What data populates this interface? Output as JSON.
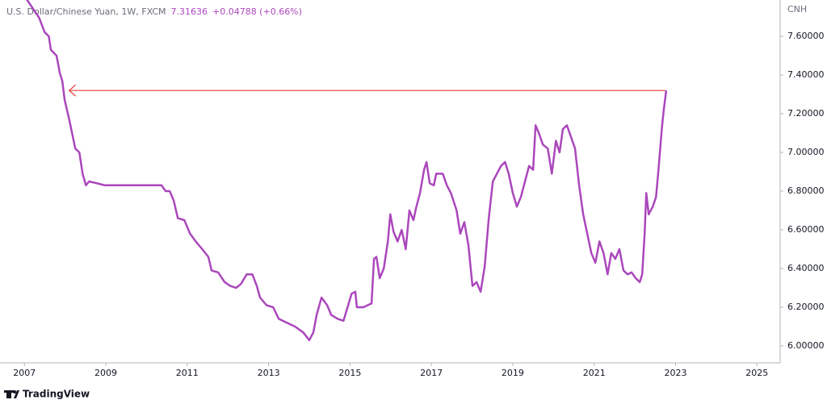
{
  "chart_data": {
    "type": "line",
    "title": "U.S. Dollar/Chinese Yuan, 1W, FXCM",
    "last_value": "7.31636",
    "change": "+0.04788 (+0.66%)",
    "y_axis_label": "CNH",
    "brand": "TradingView",
    "xlim": [
      2006.4,
      2025.57
    ],
    "xticks": [
      2007,
      2009,
      2011,
      2013,
      2015,
      2017,
      2019,
      2021,
      2023,
      2025
    ],
    "ylim": [
      5.9125,
      7.7875
    ],
    "yticks": [
      {
        "value": 6.0,
        "label": "6.00000"
      },
      {
        "value": 6.2,
        "label": "6.20000"
      },
      {
        "value": 6.4,
        "label": "6.40000"
      },
      {
        "value": 6.6,
        "label": "6.60000"
      },
      {
        "value": 6.8,
        "label": "6.80000"
      },
      {
        "value": 7.0,
        "label": "7.00000"
      },
      {
        "value": 7.2,
        "label": "7.20000"
      },
      {
        "value": 7.4,
        "label": "7.40000"
      },
      {
        "value": 7.6,
        "label": "7.60000"
      }
    ],
    "annotation_line": {
      "y": 7.32,
      "x": [
        2008.1,
        2022.75
      ],
      "color": "#e53935"
    },
    "series": [
      {
        "name": "U.S. Dollar/Chinese Yuan",
        "color": "#ab47bc",
        "x": [
          2007.06,
          2007.2,
          2007.36,
          2007.5,
          2007.6,
          2007.65,
          2007.79,
          2007.87,
          2007.93,
          2007.99,
          2008.09,
          2008.19,
          2008.25,
          2008.35,
          2008.43,
          2008.51,
          2008.59,
          2008.79,
          2008.98,
          2009.28,
          2009.58,
          2009.98,
          2010.37,
          2010.47,
          2010.57,
          2010.67,
          2010.77,
          2010.93,
          2011.07,
          2011.21,
          2011.37,
          2011.52,
          2011.6,
          2011.76,
          2011.92,
          2012.06,
          2012.2,
          2012.32,
          2012.46,
          2012.6,
          2012.71,
          2012.79,
          2012.95,
          2013.11,
          2013.25,
          2013.45,
          2013.65,
          2013.85,
          2014.0,
          2014.1,
          2014.18,
          2014.3,
          2014.44,
          2014.54,
          2014.7,
          2014.84,
          2014.94,
          2015.04,
          2015.13,
          2015.17,
          2015.33,
          2015.53,
          2015.59,
          2015.65,
          2015.73,
          2015.83,
          2015.93,
          2015.99,
          2016.07,
          2016.17,
          2016.27,
          2016.37,
          2016.46,
          2016.56,
          2016.62,
          2016.72,
          2016.82,
          2016.88,
          2016.96,
          2017.06,
          2017.12,
          2017.28,
          2017.38,
          2017.48,
          2017.62,
          2017.71,
          2017.81,
          2017.91,
          2018.01,
          2018.11,
          2018.21,
          2018.31,
          2018.41,
          2018.51,
          2018.61,
          2018.71,
          2018.81,
          2018.9,
          2019.0,
          2019.1,
          2019.2,
          2019.3,
          2019.4,
          2019.5,
          2019.56,
          2019.64,
          2019.74,
          2019.86,
          2019.96,
          2020.06,
          2020.15,
          2020.23,
          2020.33,
          2020.43,
          2020.53,
          2020.63,
          2020.73,
          2020.83,
          2020.93,
          2021.03,
          2021.13,
          2021.23,
          2021.33,
          2021.42,
          2021.52,
          2021.62,
          2021.72,
          2021.82,
          2021.92,
          2022.02,
          2022.12,
          2022.18,
          2022.24,
          2022.28,
          2022.34,
          2022.44,
          2022.52,
          2022.58,
          2022.63,
          2022.67,
          2022.71,
          2022.77
        ],
        "values": [
          7.79,
          7.746,
          7.696,
          7.62,
          7.6,
          7.53,
          7.5,
          7.41,
          7.37,
          7.27,
          7.18,
          7.08,
          7.02,
          7.0,
          6.89,
          6.83,
          6.85,
          6.84,
          6.83,
          6.83,
          6.83,
          6.83,
          6.83,
          6.8,
          6.8,
          6.75,
          6.66,
          6.65,
          6.58,
          6.54,
          6.5,
          6.46,
          6.39,
          6.38,
          6.33,
          6.31,
          6.3,
          6.32,
          6.37,
          6.37,
          6.31,
          6.25,
          6.21,
          6.2,
          6.14,
          6.12,
          6.1,
          6.07,
          6.03,
          6.07,
          6.16,
          6.25,
          6.21,
          6.16,
          6.14,
          6.13,
          6.2,
          6.27,
          6.28,
          6.2,
          6.2,
          6.22,
          6.45,
          6.46,
          6.35,
          6.4,
          6.54,
          6.68,
          6.59,
          6.54,
          6.6,
          6.5,
          6.7,
          6.65,
          6.71,
          6.79,
          6.91,
          6.95,
          6.84,
          6.83,
          6.89,
          6.89,
          6.83,
          6.79,
          6.7,
          6.58,
          6.64,
          6.52,
          6.31,
          6.33,
          6.28,
          6.41,
          6.66,
          6.85,
          6.89,
          6.93,
          6.95,
          6.89,
          6.79,
          6.72,
          6.77,
          6.85,
          6.93,
          6.91,
          7.14,
          7.1,
          7.04,
          7.02,
          6.89,
          7.06,
          7.0,
          7.12,
          7.14,
          7.08,
          7.02,
          6.83,
          6.68,
          6.58,
          6.48,
          6.43,
          6.54,
          6.48,
          6.37,
          6.48,
          6.45,
          6.5,
          6.39,
          6.37,
          6.38,
          6.35,
          6.33,
          6.37,
          6.58,
          6.79,
          6.68,
          6.72,
          6.77,
          6.91,
          7.04,
          7.14,
          7.22,
          7.32
        ]
      }
    ]
  }
}
